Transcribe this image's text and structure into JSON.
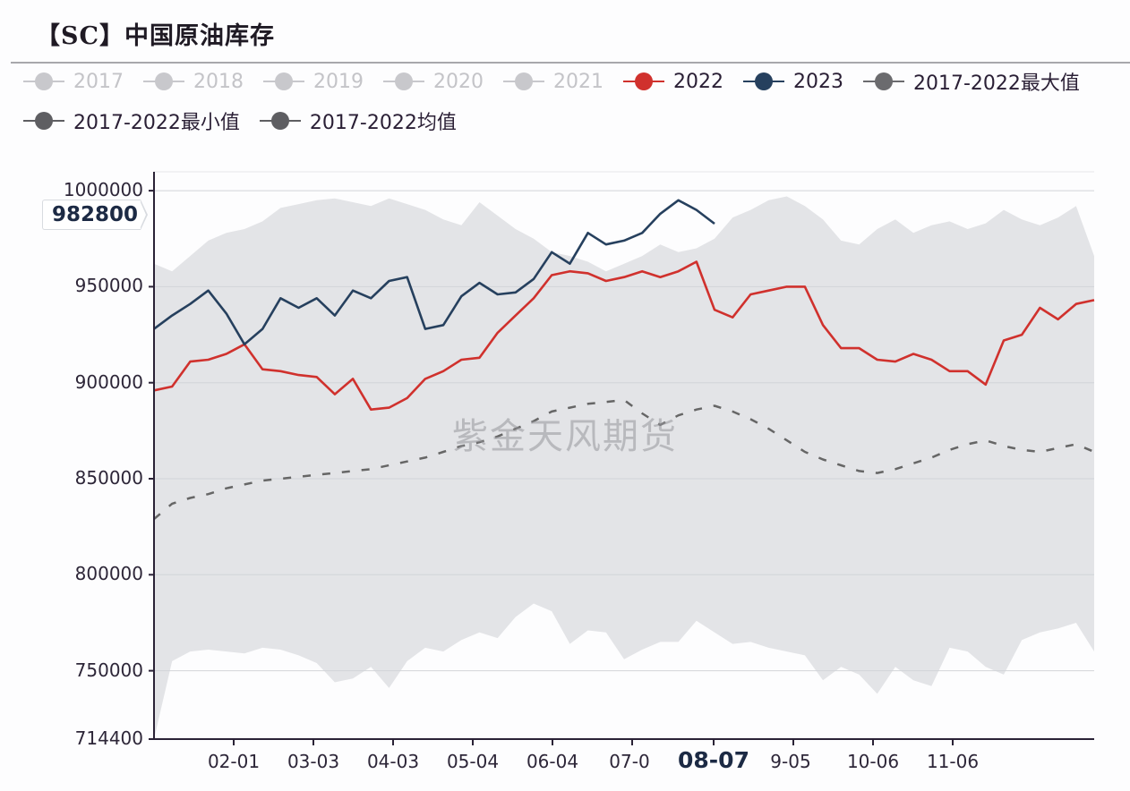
{
  "title": "【SC】中国原油库存",
  "watermark": "紫金天风期货",
  "legend": {
    "row1": [
      {
        "label": "2017",
        "color": "#c8c8cc",
        "inactive": true
      },
      {
        "label": "2018",
        "color": "#c8c8cc",
        "inactive": true
      },
      {
        "label": "2019",
        "color": "#c8c8cc",
        "inactive": true
      },
      {
        "label": "2020",
        "color": "#c8c8cc",
        "inactive": true
      },
      {
        "label": "2021",
        "color": "#c8c8cc",
        "inactive": true
      },
      {
        "label": "2022",
        "color": "#d0312d",
        "inactive": false
      },
      {
        "label": "2023",
        "color": "#26405e",
        "inactive": false
      },
      {
        "label": "2017-2022最大值",
        "color": "#6b6b6e",
        "inactive": false
      }
    ],
    "row2": [
      {
        "label": "2017-2022最小值",
        "color": "#5e5e62",
        "inactive": false
      },
      {
        "label": "2017-2022均值",
        "color": "#5e5e62",
        "inactive": false
      }
    ]
  },
  "axis_pointer": {
    "y_value": "982800",
    "x_value": "08-07"
  },
  "chart_data": {
    "type": "line",
    "title": "【SC】中国原油库存",
    "xlabel": "",
    "ylabel": "",
    "ylim": [
      714400,
      1010000
    ],
    "y_ticks": [
      "1000000",
      "950000",
      "900000",
      "850000",
      "800000",
      "750000",
      "714400"
    ],
    "x_ticks": [
      "02-01",
      "03-03",
      "04-03",
      "05-04",
      "06-04",
      "07-05",
      "08-07",
      "09-05",
      "10-06",
      "11-06"
    ],
    "x_tick_labels_visible": [
      "02-01",
      "03-03",
      "04-03",
      "05-04",
      "06-04",
      "07-0",
      "08-07",
      "9-05",
      "10-06",
      "11-06"
    ],
    "grid": true,
    "legend_position": "top",
    "x": [
      "01-01",
      "01-08",
      "01-15",
      "01-22",
      "01-29",
      "02-05",
      "02-12",
      "02-19",
      "02-26",
      "03-05",
      "03-12",
      "03-19",
      "03-26",
      "04-02",
      "04-09",
      "04-16",
      "04-23",
      "04-30",
      "05-07",
      "05-14",
      "05-21",
      "05-28",
      "06-04",
      "06-11",
      "06-18",
      "06-25",
      "07-02",
      "07-09",
      "07-16",
      "07-23",
      "07-30",
      "08-06",
      "08-13",
      "08-20",
      "08-27",
      "09-03",
      "09-10",
      "09-17",
      "09-24",
      "10-01",
      "10-08",
      "10-15",
      "10-22",
      "10-29",
      "11-05",
      "11-12",
      "11-19",
      "11-26",
      "12-03",
      "12-10",
      "12-17",
      "12-24",
      "12-31"
    ],
    "series": [
      {
        "name": "2022",
        "color": "#d0312d",
        "values": [
          896000,
          898000,
          911000,
          912000,
          915000,
          920000,
          907000,
          906000,
          904000,
          903000,
          894000,
          902000,
          886000,
          887000,
          892000,
          902000,
          906000,
          912000,
          913000,
          926000,
          935000,
          944000,
          956000,
          958000,
          957000,
          953000,
          955000,
          958000,
          955000,
          958000,
          963000,
          938000,
          934000,
          946000,
          948000,
          950000,
          950000,
          930000,
          918000,
          918000,
          912000,
          911000,
          915000,
          912000,
          906000,
          906000,
          899000,
          922000,
          925000,
          939000,
          933000,
          941000,
          943000
        ]
      },
      {
        "name": "2023",
        "color": "#26405e",
        "values": [
          928000,
          935000,
          941000,
          948000,
          936000,
          920000,
          928000,
          944000,
          939000,
          944000,
          935000,
          948000,
          944000,
          953000,
          955000,
          928000,
          930000,
          945000,
          952000,
          946000,
          947000,
          954000,
          968000,
          962000,
          978000,
          972000,
          974000,
          978000,
          988000,
          995000,
          990000,
          982800
        ]
      },
      {
        "name": "2017-2022最大值",
        "color": "#d5d6da",
        "values": [
          962000,
          958000,
          966000,
          974000,
          978000,
          980000,
          984000,
          991000,
          993000,
          995000,
          996000,
          994000,
          992000,
          996000,
          993000,
          990000,
          985000,
          982000,
          994000,
          987000,
          980000,
          975000,
          968000,
          966000,
          963000,
          958000,
          962000,
          966000,
          972000,
          968000,
          970000,
          975000,
          986000,
          990000,
          995000,
          997000,
          992000,
          985000,
          974000,
          972000,
          980000,
          985000,
          978000,
          982000,
          984000,
          980000,
          983000,
          990000,
          985000,
          982000,
          986000,
          992000,
          966000
        ]
      },
      {
        "name": "2017-2022最小值",
        "color": "#d5d6da",
        "values": [
          714400,
          755000,
          760000,
          761000,
          760000,
          759000,
          762000,
          761000,
          758000,
          754000,
          744000,
          746000,
          752000,
          741000,
          755000,
          762000,
          760000,
          766000,
          770000,
          767000,
          778000,
          785000,
          781000,
          764000,
          771000,
          770000,
          756000,
          761000,
          765000,
          765000,
          776000,
          770000,
          764000,
          765000,
          762000,
          760000,
          758000,
          745000,
          752000,
          748000,
          738000,
          752000,
          745000,
          742000,
          762000,
          760000,
          752000,
          748000,
          766000,
          770000,
          772000,
          775000,
          760000
        ]
      },
      {
        "name": "2017-2022均值",
        "color": "#666666",
        "dashed": true,
        "values": [
          829000,
          837000,
          840000,
          842000,
          845000,
          847000,
          849000,
          850000,
          851000,
          852000,
          853000,
          854000,
          855000,
          857000,
          859000,
          861000,
          864000,
          867000,
          869000,
          872000,
          876000,
          880000,
          885000,
          887000,
          889000,
          890000,
          891000,
          884000,
          878000,
          883000,
          886000,
          888000,
          885000,
          881000,
          876000,
          870000,
          864000,
          860000,
          857000,
          854000,
          853000,
          855000,
          858000,
          861000,
          865000,
          868000,
          870000,
          867000,
          865000,
          864000,
          866000,
          868000,
          864000
        ]
      }
    ]
  }
}
